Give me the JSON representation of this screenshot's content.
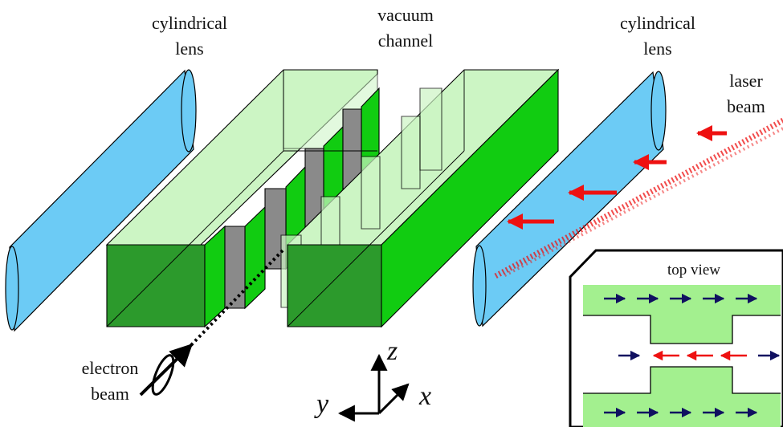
{
  "labels": {
    "left_lens": [
      "cylindrical",
      "lens"
    ],
    "channel": [
      "vacuum",
      "channel"
    ],
    "right_lens": [
      "cylindrical",
      "lens"
    ],
    "laser": [
      "laser",
      "beam"
    ],
    "electron": [
      "electron",
      "beam"
    ],
    "inset_title": "top view"
  },
  "axes": {
    "z": "z",
    "y": "y",
    "x": "x"
  },
  "colors": {
    "lens": "#6ccbf5",
    "glass_light": "#ccf5c4",
    "glass_dark": "#2c9a2c",
    "glass_bright": "#11cc11",
    "grey_gap": "#8a8a8a",
    "laser_red": "#ee1111",
    "inset_green": "#a3f08f",
    "arrow_blue": "#101060"
  }
}
